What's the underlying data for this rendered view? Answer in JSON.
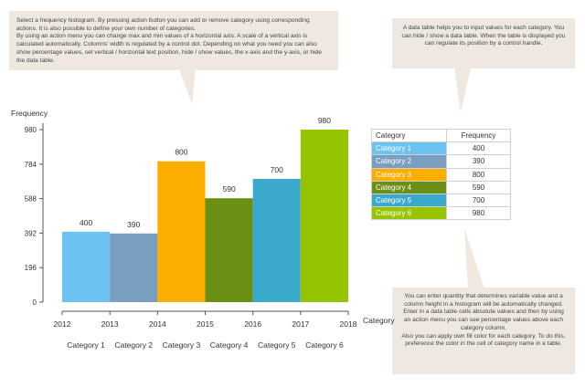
{
  "callouts": {
    "top_left": "Select a frequency histogram. By pressing action button you can add or remove category using corresponding actions. It is also possible to define your own number of categories.\n    By using an action menu you can change max and min values of a horizontal axis. A scale of a vertical axis is calculated automatically. Columns' width is regulated by a control dot. Depending on what you need you can also show percentage values, set vertical / horizontal text position, hide / show values, the x-axis and the y-axis, or hide the data table.",
    "top_right": "A data table helps you to input values for each category. You can hide / show a data table. When the table is displayed you can regulate its position by a control handle.",
    "bottom_right": "You can enter quantity that determines variable value and a column height in a histogram will be automatically changed. Enter in a data table cells absolute values and then by using an action menu you can see percentage values above each category column.\n    Also you can apply own fill color for each category. To do this, preference the color in the cell of category name in a table."
  },
  "table": {
    "header_category": "Category",
    "header_frequency": "Frequency"
  },
  "chart_data": {
    "type": "bar",
    "categories": [
      "Category 1",
      "Category 2",
      "Category 3",
      "Category 4",
      "Category 5",
      "Category 6"
    ],
    "values": [
      400,
      390,
      800,
      590,
      700,
      980
    ],
    "colors": [
      "#6cc3f2",
      "#7a9ec0",
      "#fbae00",
      "#6b8e14",
      "#3aa9cb",
      "#95c501"
    ],
    "x_ticks": [
      "2012",
      "2013",
      "2014",
      "2015",
      "2016",
      "2017",
      "2018"
    ],
    "y_ticks": [
      0,
      196,
      392,
      588,
      784,
      980
    ],
    "ylabel": "Frequency",
    "xlabel": "Category",
    "ylim": [
      0,
      980
    ],
    "grid": false
  }
}
